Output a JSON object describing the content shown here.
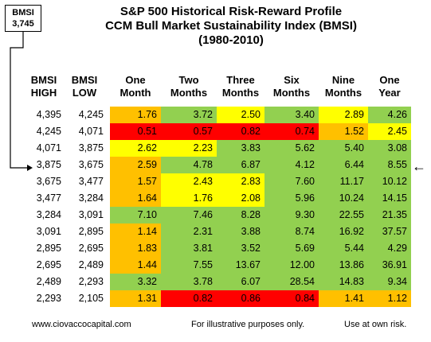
{
  "bmsi_box": {
    "label": "BMSI",
    "value": "3,745"
  },
  "titles": [
    "S&P 500 Historical Risk-Reward Profile",
    "CCM Bull Market Sustainability Index (BMSI)",
    "(1980-2010)"
  ],
  "headers": {
    "high": [
      "BMSI",
      "HIGH"
    ],
    "low": [
      "BMSI",
      "LOW"
    ],
    "periods": [
      [
        "One",
        "Month"
      ],
      [
        "Two",
        "Months"
      ],
      [
        "Three",
        "Months"
      ],
      [
        "Six",
        "Months"
      ],
      [
        "Nine",
        "Months"
      ],
      [
        "One",
        "Year"
      ]
    ]
  },
  "rows": [
    {
      "high": "4,395",
      "low": "4,245",
      "values": [
        "1.76",
        "3.72",
        "2.50",
        "3.40",
        "2.89",
        "4.26"
      ]
    },
    {
      "high": "4,245",
      "low": "4,071",
      "values": [
        "0.51",
        "0.57",
        "0.82",
        "0.74",
        "1.52",
        "2.45"
      ]
    },
    {
      "high": "4,071",
      "low": "3,875",
      "values": [
        "2.62",
        "2.23",
        "3.83",
        "5.62",
        "5.40",
        "3.08"
      ]
    },
    {
      "high": "3,875",
      "low": "3,675",
      "values": [
        "2.59",
        "4.78",
        "6.87",
        "4.12",
        "6.44",
        "8.55"
      ]
    },
    {
      "high": "3,675",
      "low": "3,477",
      "values": [
        "1.57",
        "2.43",
        "2.83",
        "7.60",
        "11.17",
        "10.12"
      ]
    },
    {
      "high": "3,477",
      "low": "3,284",
      "values": [
        "1.64",
        "1.76",
        "2.08",
        "5.96",
        "10.24",
        "14.15"
      ]
    },
    {
      "high": "3,284",
      "low": "3,091",
      "values": [
        "7.10",
        "7.46",
        "8.28",
        "9.30",
        "22.55",
        "21.35"
      ]
    },
    {
      "high": "3,091",
      "low": "2,895",
      "values": [
        "1.14",
        "2.31",
        "3.88",
        "8.74",
        "16.92",
        "37.57"
      ]
    },
    {
      "high": "2,895",
      "low": "2,695",
      "values": [
        "1.83",
        "3.81",
        "3.52",
        "5.69",
        "5.44",
        "4.29"
      ]
    },
    {
      "high": "2,695",
      "low": "2,489",
      "values": [
        "1.44",
        "7.55",
        "13.67",
        "12.00",
        "13.86",
        "36.91"
      ]
    },
    {
      "high": "2,489",
      "low": "2,293",
      "values": [
        "3.32",
        "3.78",
        "6.07",
        "28.54",
        "14.83",
        "9.34"
      ]
    },
    {
      "high": "2,293",
      "low": "2,105",
      "values": [
        "1.31",
        "0.82",
        "0.86",
        "0.84",
        "1.41",
        "1.12"
      ]
    }
  ],
  "colors": {
    "red": "#ff0000",
    "orange": "#ffc000",
    "yellow": "#ffff00",
    "green": "#92d050"
  },
  "cell_colors": [
    [
      "orange",
      "green",
      "yellow",
      "green",
      "yellow",
      "green"
    ],
    [
      "red",
      "red",
      "red",
      "red",
      "orange",
      "yellow"
    ],
    [
      "yellow",
      "yellow",
      "green",
      "green",
      "green",
      "green"
    ],
    [
      "orange",
      "green",
      "green",
      "green",
      "green",
      "green"
    ],
    [
      "orange",
      "yellow",
      "yellow",
      "green",
      "green",
      "green"
    ],
    [
      "orange",
      "yellow",
      "yellow",
      "green",
      "green",
      "green"
    ],
    [
      "green",
      "green",
      "green",
      "green",
      "green",
      "green"
    ],
    [
      "orange",
      "green",
      "green",
      "green",
      "green",
      "green"
    ],
    [
      "orange",
      "green",
      "green",
      "green",
      "green",
      "green"
    ],
    [
      "orange",
      "green",
      "green",
      "green",
      "green",
      "green"
    ],
    [
      "green",
      "green",
      "green",
      "green",
      "green",
      "green"
    ],
    [
      "orange",
      "red",
      "red",
      "red",
      "orange",
      "orange"
    ]
  ],
  "footer": {
    "website": "www.ciovaccocapital.com",
    "note": "For illustrative purposes only.",
    "risk": "Use at own risk."
  },
  "current_row_index": 3,
  "arrow_glyph": "←"
}
